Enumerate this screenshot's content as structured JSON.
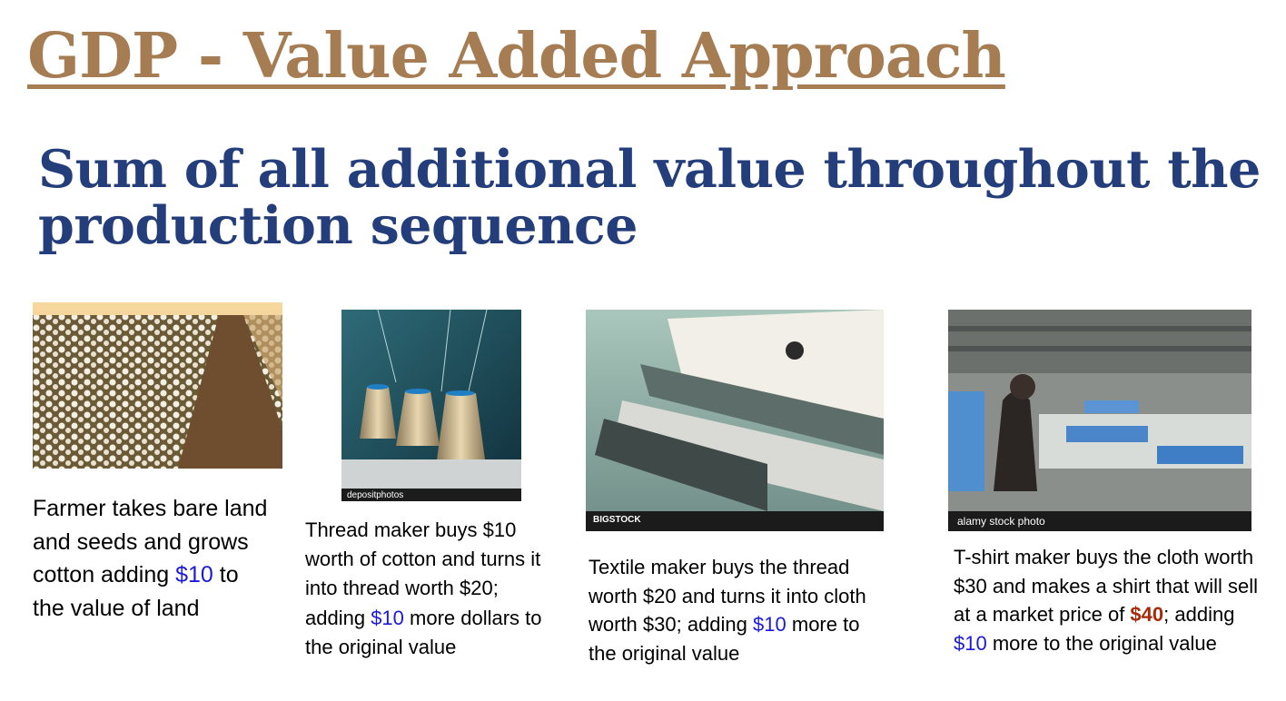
{
  "title": "GDP - Value Added Approach",
  "subtitle": "Sum of all additional value throughout the production sequence",
  "steps": [
    {
      "image_icon": "cotton-field-photo",
      "caption_pre": "Farmer takes bare land and seeds and grows cotton adding ",
      "added_value": "$10",
      "caption_post": " to the value of land"
    },
    {
      "image_icon": "thread-spools-photo",
      "watermark": "depositphotos",
      "caption_pre": "Thread maker buys $10 worth of cotton and turns it into thread worth $20; adding ",
      "added_value": "$10",
      "caption_post": " more dollars to the original value"
    },
    {
      "image_icon": "textile-machine-photo",
      "watermark": "BIGSTOCK",
      "caption_pre": "Textile maker buys the thread worth $20 and turns it into cloth worth $30; adding ",
      "added_value": "$10",
      "caption_post": " more to the original value"
    },
    {
      "image_icon": "tshirt-factory-photo",
      "watermark": "alamy stock photo",
      "caption_pre": "T-shirt maker buys the cloth worth $30 and makes a shirt that will sell at a market price of ",
      "market_price": "$40",
      "caption_mid": "; adding ",
      "added_value": "$10",
      "caption_post": " more to the original value"
    }
  ]
}
